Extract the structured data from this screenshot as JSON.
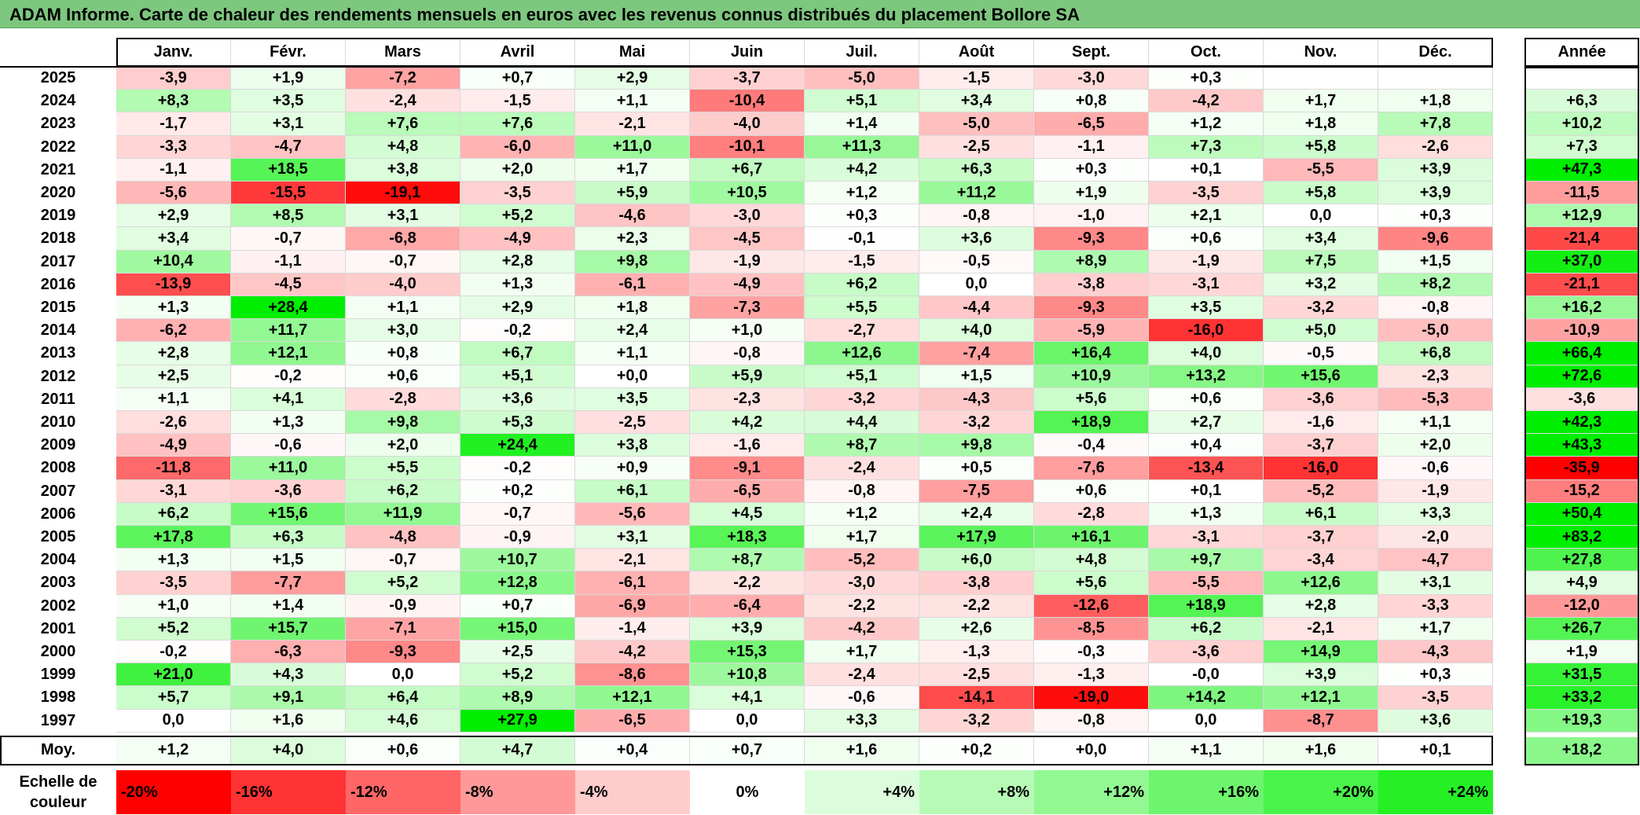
{
  "title": "ADAM Informe. Carte de chaleur des rendements mensuels en euros avec les revenus connus distribués du placement Bollore SA",
  "chart_data": {
    "type": "heatmap",
    "months": [
      "Janv.",
      "Févr.",
      "Mars",
      "Avril",
      "Mai",
      "Juin",
      "Juil.",
      "Août",
      "Sept.",
      "Oct.",
      "Nov.",
      "Déc."
    ],
    "year_header": "Année",
    "rows": [
      {
        "year": "2025",
        "values": [
          "-3,9",
          "+1,9",
          "-7,2",
          "+0,7",
          "+2,9",
          "-3,7",
          "-5,0",
          "-1,5",
          "-3,0",
          "+0,3",
          "",
          ""
        ],
        "annual": ""
      },
      {
        "year": "2024",
        "values": [
          "+8,3",
          "+3,5",
          "-2,4",
          "-1,5",
          "+1,1",
          "-10,4",
          "+5,1",
          "+3,4",
          "+0,8",
          "-4,2",
          "+1,7",
          "+1,8"
        ],
        "annual": "+6,3"
      },
      {
        "year": "2023",
        "values": [
          "-1,7",
          "+3,1",
          "+7,6",
          "+7,6",
          "-2,1",
          "-4,0",
          "+1,4",
          "-5,0",
          "-6,5",
          "+1,2",
          "+1,8",
          "+7,8"
        ],
        "annual": "+10,2"
      },
      {
        "year": "2022",
        "values": [
          "-3,3",
          "-4,7",
          "+4,8",
          "-6,0",
          "+11,0",
          "-10,1",
          "+11,3",
          "-2,5",
          "-1,1",
          "+7,3",
          "+5,8",
          "-2,6"
        ],
        "annual": "+7,3"
      },
      {
        "year": "2021",
        "values": [
          "-1,1",
          "+18,5",
          "+3,8",
          "+2,0",
          "+1,7",
          "+6,7",
          "+4,2",
          "+6,3",
          "+0,3",
          "+0,1",
          "-5,5",
          "+3,9"
        ],
        "annual": "+47,3"
      },
      {
        "year": "2020",
        "values": [
          "-5,6",
          "-15,5",
          "-19,1",
          "-3,5",
          "+5,9",
          "+10,5",
          "+1,2",
          "+11,2",
          "+1,9",
          "-3,5",
          "+5,8",
          "+3,9"
        ],
        "annual": "-11,5"
      },
      {
        "year": "2019",
        "values": [
          "+2,9",
          "+8,5",
          "+3,1",
          "+5,2",
          "-4,6",
          "-3,0",
          "+0,3",
          "-0,8",
          "-1,0",
          "+2,1",
          "0,0",
          "+0,3"
        ],
        "annual": "+12,9"
      },
      {
        "year": "2018",
        "values": [
          "+3,4",
          "-0,7",
          "-6,8",
          "-4,9",
          "+2,3",
          "-4,5",
          "-0,1",
          "+3,6",
          "-9,3",
          "+0,6",
          "+3,4",
          "-9,6"
        ],
        "annual": "-21,4"
      },
      {
        "year": "2017",
        "values": [
          "+10,4",
          "-1,1",
          "-0,7",
          "+2,8",
          "+9,8",
          "-1,9",
          "-1,5",
          "-0,5",
          "+8,9",
          "-1,9",
          "+7,5",
          "+1,5"
        ],
        "annual": "+37,0"
      },
      {
        "year": "2016",
        "values": [
          "-13,9",
          "-4,5",
          "-4,0",
          "+1,3",
          "-6,1",
          "-4,9",
          "+6,2",
          "0,0",
          "-3,8",
          "-3,1",
          "+3,2",
          "+8,2"
        ],
        "annual": "-21,1"
      },
      {
        "year": "2015",
        "values": [
          "+1,3",
          "+28,4",
          "+1,1",
          "+2,9",
          "+1,8",
          "-7,3",
          "+5,5",
          "-4,4",
          "-9,3",
          "+3,5",
          "-3,2",
          "-0,8"
        ],
        "annual": "+16,2"
      },
      {
        "year": "2014",
        "values": [
          "-6,2",
          "+11,7",
          "+3,0",
          "-0,2",
          "+2,4",
          "+1,0",
          "-2,7",
          "+4,0",
          "-5,9",
          "-16,0",
          "+5,0",
          "-5,0"
        ],
        "annual": "-10,9"
      },
      {
        "year": "2013",
        "values": [
          "+2,8",
          "+12,1",
          "+0,8",
          "+6,7",
          "+1,1",
          "-0,8",
          "+12,6",
          "-7,4",
          "+16,4",
          "+4,0",
          "-0,5",
          "+6,8"
        ],
        "annual": "+66,4"
      },
      {
        "year": "2012",
        "values": [
          "+2,5",
          "-0,2",
          "+0,6",
          "+5,1",
          "+0,0",
          "+5,9",
          "+5,1",
          "+1,5",
          "+10,9",
          "+13,2",
          "+15,6",
          "-2,3"
        ],
        "annual": "+72,6"
      },
      {
        "year": "2011",
        "values": [
          "+1,1",
          "+4,1",
          "-2,8",
          "+3,6",
          "+3,5",
          "-2,3",
          "-3,2",
          "-4,3",
          "+5,6",
          "+0,6",
          "-3,6",
          "-5,3"
        ],
        "annual": "-3,6"
      },
      {
        "year": "2010",
        "values": [
          "-2,6",
          "+1,3",
          "+9,8",
          "+5,3",
          "-2,5",
          "+4,2",
          "+4,4",
          "-3,2",
          "+18,9",
          "+2,7",
          "-1,6",
          "+1,1"
        ],
        "annual": "+42,3"
      },
      {
        "year": "2009",
        "values": [
          "-4,9",
          "-0,6",
          "+2,0",
          "+24,4",
          "+3,8",
          "-1,6",
          "+8,7",
          "+9,8",
          "-0,4",
          "+0,4",
          "-3,7",
          "+2,0"
        ],
        "annual": "+43,3"
      },
      {
        "year": "2008",
        "values": [
          "-11,8",
          "+11,0",
          "+5,5",
          "-0,2",
          "+0,9",
          "-9,1",
          "-2,4",
          "+0,5",
          "-7,6",
          "-13,4",
          "-16,0",
          "-0,6"
        ],
        "annual": "-35,9"
      },
      {
        "year": "2007",
        "values": [
          "-3,1",
          "-3,6",
          "+6,2",
          "+0,2",
          "+6,1",
          "-6,5",
          "-0,8",
          "-7,5",
          "+0,6",
          "+0,1",
          "-5,2",
          "-1,9"
        ],
        "annual": "-15,2"
      },
      {
        "year": "2006",
        "values": [
          "+6,2",
          "+15,6",
          "+11,9",
          "-0,7",
          "-5,6",
          "+4,5",
          "+1,2",
          "+2,4",
          "-2,8",
          "+1,3",
          "+6,1",
          "+3,3"
        ],
        "annual": "+50,4"
      },
      {
        "year": "2005",
        "values": [
          "+17,8",
          "+6,3",
          "-4,8",
          "-0,9",
          "+3,1",
          "+18,3",
          "+1,7",
          "+17,9",
          "+16,1",
          "-3,1",
          "-3,7",
          "-2,0"
        ],
        "annual": "+83,2"
      },
      {
        "year": "2004",
        "values": [
          "+1,3",
          "+1,5",
          "-0,7",
          "+10,7",
          "-2,1",
          "+8,7",
          "-5,2",
          "+6,0",
          "+4,8",
          "+9,7",
          "-3,4",
          "-4,7"
        ],
        "annual": "+27,8"
      },
      {
        "year": "2003",
        "values": [
          "-3,5",
          "-7,7",
          "+5,2",
          "+12,8",
          "-6,1",
          "-2,2",
          "-3,0",
          "-3,8",
          "+5,6",
          "-5,5",
          "+12,6",
          "+3,1"
        ],
        "annual": "+4,9"
      },
      {
        "year": "2002",
        "values": [
          "+1,0",
          "+1,4",
          "-0,9",
          "+0,7",
          "-6,9",
          "-6,4",
          "-2,2",
          "-2,2",
          "-12,6",
          "+18,9",
          "+2,8",
          "-3,3"
        ],
        "annual": "-12,0"
      },
      {
        "year": "2001",
        "values": [
          "+5,2",
          "+15,7",
          "-7,1",
          "+15,0",
          "-1,4",
          "+3,9",
          "-4,2",
          "+2,6",
          "-8,5",
          "+6,2",
          "-2,1",
          "+1,7"
        ],
        "annual": "+26,7"
      },
      {
        "year": "2000",
        "values": [
          "-0,2",
          "-6,3",
          "-9,3",
          "+2,5",
          "-4,2",
          "+15,3",
          "+1,7",
          "-1,3",
          "-0,3",
          "-3,6",
          "+14,9",
          "-4,3"
        ],
        "annual": "+1,9"
      },
      {
        "year": "1999",
        "values": [
          "+21,0",
          "+4,3",
          "0,0",
          "+5,2",
          "-8,6",
          "+10,8",
          "-2,4",
          "-2,5",
          "-1,3",
          "-0,0",
          "+3,9",
          "+0,3"
        ],
        "annual": "+31,5"
      },
      {
        "year": "1998",
        "values": [
          "+5,7",
          "+9,1",
          "+6,4",
          "+8,9",
          "+12,1",
          "+4,1",
          "-0,6",
          "-14,1",
          "-19,0",
          "+14,2",
          "+12,1",
          "-3,5"
        ],
        "annual": "+33,2"
      },
      {
        "year": "1997",
        "values": [
          "0,0",
          "+1,6",
          "+4,6",
          "+27,9",
          "-6,5",
          "0,0",
          "+3,3",
          "-3,2",
          "-0,8",
          "0,0",
          "-8,7",
          "+3,6"
        ],
        "annual": "+19,3"
      }
    ],
    "average": {
      "label": "Moy.",
      "values": [
        "+1,2",
        "+4,0",
        "+0,6",
        "+4,7",
        "+0,4",
        "+0,7",
        "+1,6",
        "+0,2",
        "+0,0",
        "+1,1",
        "+1,6",
        "+0,1"
      ],
      "annual": "+18,2"
    },
    "legend": {
      "title_line1": "Echelle de",
      "title_line2": "couleur",
      "stops": [
        "-20%",
        "-16%",
        "-12%",
        "-8%",
        "-4%",
        "0%",
        "+4%",
        "+8%",
        "+12%",
        "+16%",
        "+20%",
        "+24%"
      ],
      "stop_values": [
        -20,
        -16,
        -12,
        -8,
        -4,
        0,
        4,
        8,
        12,
        16,
        20,
        24
      ]
    },
    "colors": {
      "negative_max": "#ff0000",
      "neutral": "#ffffff",
      "positive_max": "#00ee00",
      "title_bg": "#7dc77f"
    }
  }
}
